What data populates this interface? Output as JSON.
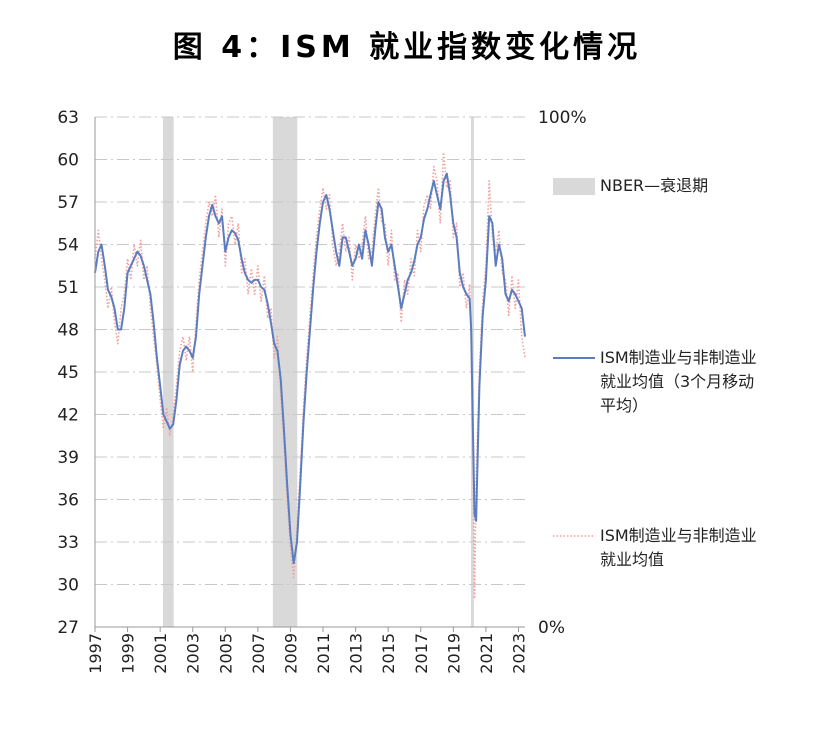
{
  "chart_data": {
    "type": "line",
    "title": "图 4：ISM 就业指数变化情况",
    "xlabel": "",
    "ylabel": "",
    "ylim": [
      27,
      63
    ],
    "yticks": [
      "63",
      "60",
      "57",
      "54",
      "51",
      "48",
      "45",
      "42",
      "39",
      "36",
      "33",
      "30",
      "27"
    ],
    "y2ticks": [
      "100%",
      "0%"
    ],
    "xticks": [
      "1997",
      "1999",
      "2001",
      "2003",
      "2005",
      "2007",
      "2009",
      "2011",
      "2013",
      "2015",
      "2017",
      "2019",
      "2021",
      "2023"
    ],
    "xrange": [
      1997.0,
      2023.4
    ],
    "grid": true,
    "recessions": [
      {
        "start": 2001.17,
        "end": 2001.83
      },
      {
        "start": 2007.92,
        "end": 2009.42
      },
      {
        "start": 2020.08,
        "end": 2020.25
      }
    ],
    "legend": [
      {
        "name": "NBER—衰退期",
        "style": "shaded",
        "color": "#d9d9d9"
      },
      {
        "name": "ISM制造业与非制造业就业均值（3个月移动平均）",
        "style": "solid",
        "color": "#5b7dbf"
      },
      {
        "name": "ISM制造业与非制造业就业均值",
        "style": "dotted",
        "color": "#f2a09e"
      }
    ],
    "series": [
      {
        "name": "ISM制造业与非制造业就业均值（3个月移动平均）",
        "x": [
          1997.0,
          1997.2,
          1997.4,
          1997.6,
          1997.8,
          1998.0,
          1998.2,
          1998.4,
          1998.6,
          1998.8,
          1999.0,
          1999.2,
          1999.4,
          1999.6,
          1999.8,
          2000.0,
          2000.2,
          2000.4,
          2000.6,
          2000.8,
          2001.0,
          2001.2,
          2001.4,
          2001.6,
          2001.8,
          2002.0,
          2002.2,
          2002.4,
          2002.6,
          2002.8,
          2003.0,
          2003.2,
          2003.4,
          2003.6,
          2003.8,
          2004.0,
          2004.2,
          2004.4,
          2004.6,
          2004.8,
          2005.0,
          2005.2,
          2005.4,
          2005.6,
          2005.8,
          2006.0,
          2006.2,
          2006.4,
          2006.6,
          2006.8,
          2007.0,
          2007.2,
          2007.4,
          2007.6,
          2007.8,
          2008.0,
          2008.2,
          2008.4,
          2008.6,
          2008.8,
          2009.0,
          2009.2,
          2009.4,
          2009.6,
          2009.8,
          2010.0,
          2010.2,
          2010.4,
          2010.6,
          2010.8,
          2011.0,
          2011.2,
          2011.4,
          2011.6,
          2011.8,
          2012.0,
          2012.2,
          2012.4,
          2012.6,
          2012.8,
          2013.0,
          2013.2,
          2013.4,
          2013.6,
          2013.8,
          2014.0,
          2014.2,
          2014.4,
          2014.6,
          2014.8,
          2015.0,
          2015.2,
          2015.4,
          2015.6,
          2015.8,
          2016.0,
          2016.2,
          2016.4,
          2016.6,
          2016.8,
          2017.0,
          2017.2,
          2017.4,
          2017.6,
          2017.8,
          2018.0,
          2018.2,
          2018.4,
          2018.6,
          2018.8,
          2019.0,
          2019.2,
          2019.4,
          2019.6,
          2019.8,
          2020.0,
          2020.1,
          2020.2,
          2020.3,
          2020.4,
          2020.6,
          2020.8,
          2021.0,
          2021.2,
          2021.4,
          2021.6,
          2021.8,
          2022.0,
          2022.2,
          2022.4,
          2022.6,
          2022.8,
          2023.0,
          2023.2,
          2023.4
        ],
        "y": [
          52.0,
          53.5,
          54.0,
          52.5,
          50.8,
          50.3,
          49.5,
          48.0,
          48.0,
          49.5,
          52.0,
          52.5,
          53.0,
          53.5,
          53.2,
          52.5,
          51.5,
          50.5,
          48.5,
          46.0,
          44.0,
          42.0,
          41.5,
          41.0,
          41.3,
          43.0,
          45.5,
          46.5,
          46.8,
          46.5,
          46.0,
          47.5,
          50.5,
          52.5,
          54.5,
          56.0,
          56.8,
          56.0,
          55.5,
          56.0,
          53.5,
          54.5,
          55.0,
          54.8,
          54.3,
          53.0,
          52.0,
          51.5,
          51.3,
          51.5,
          51.5,
          51.0,
          50.8,
          49.8,
          48.5,
          47.0,
          46.5,
          44.5,
          41.0,
          37.0,
          33.5,
          31.5,
          33.0,
          37.0,
          41.5,
          45.0,
          48.0,
          51.0,
          53.5,
          55.5,
          57.0,
          57.5,
          56.5,
          55.0,
          53.5,
          52.5,
          54.5,
          54.5,
          53.5,
          52.5,
          53.0,
          54.0,
          53.0,
          55.0,
          54.0,
          52.5,
          55.0,
          57.0,
          56.5,
          54.5,
          53.5,
          54.0,
          52.5,
          51.0,
          49.5,
          50.5,
          51.5,
          52.0,
          52.8,
          54.0,
          54.5,
          55.8,
          56.5,
          57.5,
          58.5,
          57.5,
          56.5,
          58.5,
          59.0,
          57.5,
          55.5,
          54.5,
          52.0,
          51.0,
          50.5,
          50.2,
          48.0,
          41.0,
          35.0,
          34.5,
          44.0,
          49.0,
          51.5,
          56.0,
          55.5,
          52.5,
          54.0,
          53.0,
          50.5,
          50.0,
          50.8,
          50.5,
          50.0,
          49.5,
          47.5
        ]
      },
      {
        "name": "ISM制造业与非制造业就业均值",
        "x": [
          1997.0,
          1997.2,
          1997.4,
          1997.6,
          1997.8,
          1998.0,
          1998.2,
          1998.4,
          1998.6,
          1998.8,
          1999.0,
          1999.2,
          1999.4,
          1999.6,
          1999.8,
          2000.0,
          2000.2,
          2000.4,
          2000.6,
          2000.8,
          2001.0,
          2001.2,
          2001.4,
          2001.6,
          2001.8,
          2002.0,
          2002.2,
          2002.4,
          2002.6,
          2002.8,
          2003.0,
          2003.2,
          2003.4,
          2003.6,
          2003.8,
          2004.0,
          2004.2,
          2004.4,
          2004.6,
          2004.8,
          2005.0,
          2005.2,
          2005.4,
          2005.6,
          2005.8,
          2006.0,
          2006.2,
          2006.4,
          2006.6,
          2006.8,
          2007.0,
          2007.2,
          2007.4,
          2007.6,
          2007.8,
          2008.0,
          2008.2,
          2008.4,
          2008.6,
          2008.8,
          2009.0,
          2009.2,
          2009.4,
          2009.6,
          2009.8,
          2010.0,
          2010.2,
          2010.4,
          2010.6,
          2010.8,
          2011.0,
          2011.2,
          2011.4,
          2011.6,
          2011.8,
          2012.0,
          2012.2,
          2012.4,
          2012.6,
          2012.8,
          2013.0,
          2013.2,
          2013.4,
          2013.6,
          2013.8,
          2014.0,
          2014.2,
          2014.4,
          2014.6,
          2014.8,
          2015.0,
          2015.2,
          2015.4,
          2015.6,
          2015.8,
          2016.0,
          2016.2,
          2016.4,
          2016.6,
          2016.8,
          2017.0,
          2017.2,
          2017.4,
          2017.6,
          2017.8,
          2018.0,
          2018.2,
          2018.4,
          2018.6,
          2018.8,
          2019.0,
          2019.2,
          2019.4,
          2019.6,
          2019.8,
          2020.0,
          2020.1,
          2020.2,
          2020.3,
          2020.4,
          2020.6,
          2020.8,
          2021.0,
          2021.2,
          2021.4,
          2021.6,
          2021.8,
          2022.0,
          2022.2,
          2022.4,
          2022.6,
          2022.8,
          2023.0,
          2023.2,
          2023.4
        ],
        "y": [
          53.0,
          55.0,
          53.0,
          51.5,
          49.5,
          51.0,
          48.5,
          47.0,
          49.5,
          50.5,
          53.0,
          51.5,
          54.0,
          52.5,
          54.3,
          51.5,
          52.5,
          49.5,
          47.5,
          45.5,
          43.0,
          41.0,
          42.5,
          40.5,
          42.0,
          44.0,
          46.5,
          47.5,
          45.8,
          47.5,
          45.0,
          48.5,
          51.5,
          53.5,
          55.5,
          57.0,
          56.0,
          57.5,
          54.5,
          56.5,
          52.5,
          55.5,
          56.0,
          54.0,
          55.5,
          52.0,
          53.0,
          50.5,
          52.3,
          50.5,
          52.5,
          50.0,
          51.8,
          48.8,
          49.5,
          46.0,
          47.5,
          43.5,
          40.0,
          36.0,
          32.5,
          30.5,
          34.0,
          38.0,
          42.5,
          46.0,
          49.0,
          52.0,
          54.5,
          56.5,
          58.0,
          56.5,
          57.5,
          54.0,
          52.5,
          53.5,
          55.5,
          53.5,
          54.5,
          51.5,
          54.0,
          53.0,
          54.0,
          56.0,
          53.0,
          53.5,
          56.0,
          58.0,
          55.5,
          55.5,
          52.5,
          55.0,
          51.5,
          52.0,
          48.5,
          51.5,
          50.5,
          53.0,
          51.8,
          55.0,
          53.5,
          56.8,
          57.5,
          56.5,
          59.5,
          58.5,
          55.5,
          60.5,
          58.0,
          58.5,
          54.5,
          55.5,
          51.0,
          52.0,
          49.5,
          51.2,
          47.0,
          40.0,
          29.0,
          37.5,
          45.0,
          50.0,
          52.5,
          58.5,
          54.5,
          53.5,
          55.0,
          52.0,
          51.5,
          49.0,
          51.8,
          49.5,
          51.5,
          47.5,
          46.0
        ]
      }
    ]
  }
}
